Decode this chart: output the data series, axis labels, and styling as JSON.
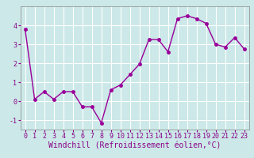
{
  "x": [
    0,
    1,
    2,
    3,
    4,
    5,
    6,
    7,
    8,
    9,
    10,
    11,
    12,
    13,
    14,
    15,
    16,
    17,
    18,
    19,
    20,
    21,
    22,
    23
  ],
  "y": [
    3.8,
    0.1,
    0.5,
    0.1,
    0.5,
    0.5,
    -0.3,
    -0.3,
    -1.15,
    0.6,
    0.85,
    1.4,
    1.95,
    3.25,
    3.25,
    2.6,
    4.35,
    4.5,
    4.35,
    4.1,
    3.0,
    2.85,
    3.35,
    2.75
  ],
  "line_color": "#990099",
  "marker": "o",
  "markersize": 2.5,
  "linewidth": 1.0,
  "xlabel": "Windchill (Refroidissement éolien,°C)",
  "xlim": [
    -0.5,
    23.5
  ],
  "ylim": [
    -1.5,
    5.0
  ],
  "yticks": [
    -1,
    0,
    1,
    2,
    3,
    4
  ],
  "xticks": [
    0,
    1,
    2,
    3,
    4,
    5,
    6,
    7,
    8,
    9,
    10,
    11,
    12,
    13,
    14,
    15,
    16,
    17,
    18,
    19,
    20,
    21,
    22,
    23
  ],
  "bg_color": "#cce8e8",
  "grid_color": "#ffffff",
  "tick_label_fontsize": 6,
  "xlabel_fontsize": 7,
  "tick_color": "#880088",
  "label_color": "#880088"
}
